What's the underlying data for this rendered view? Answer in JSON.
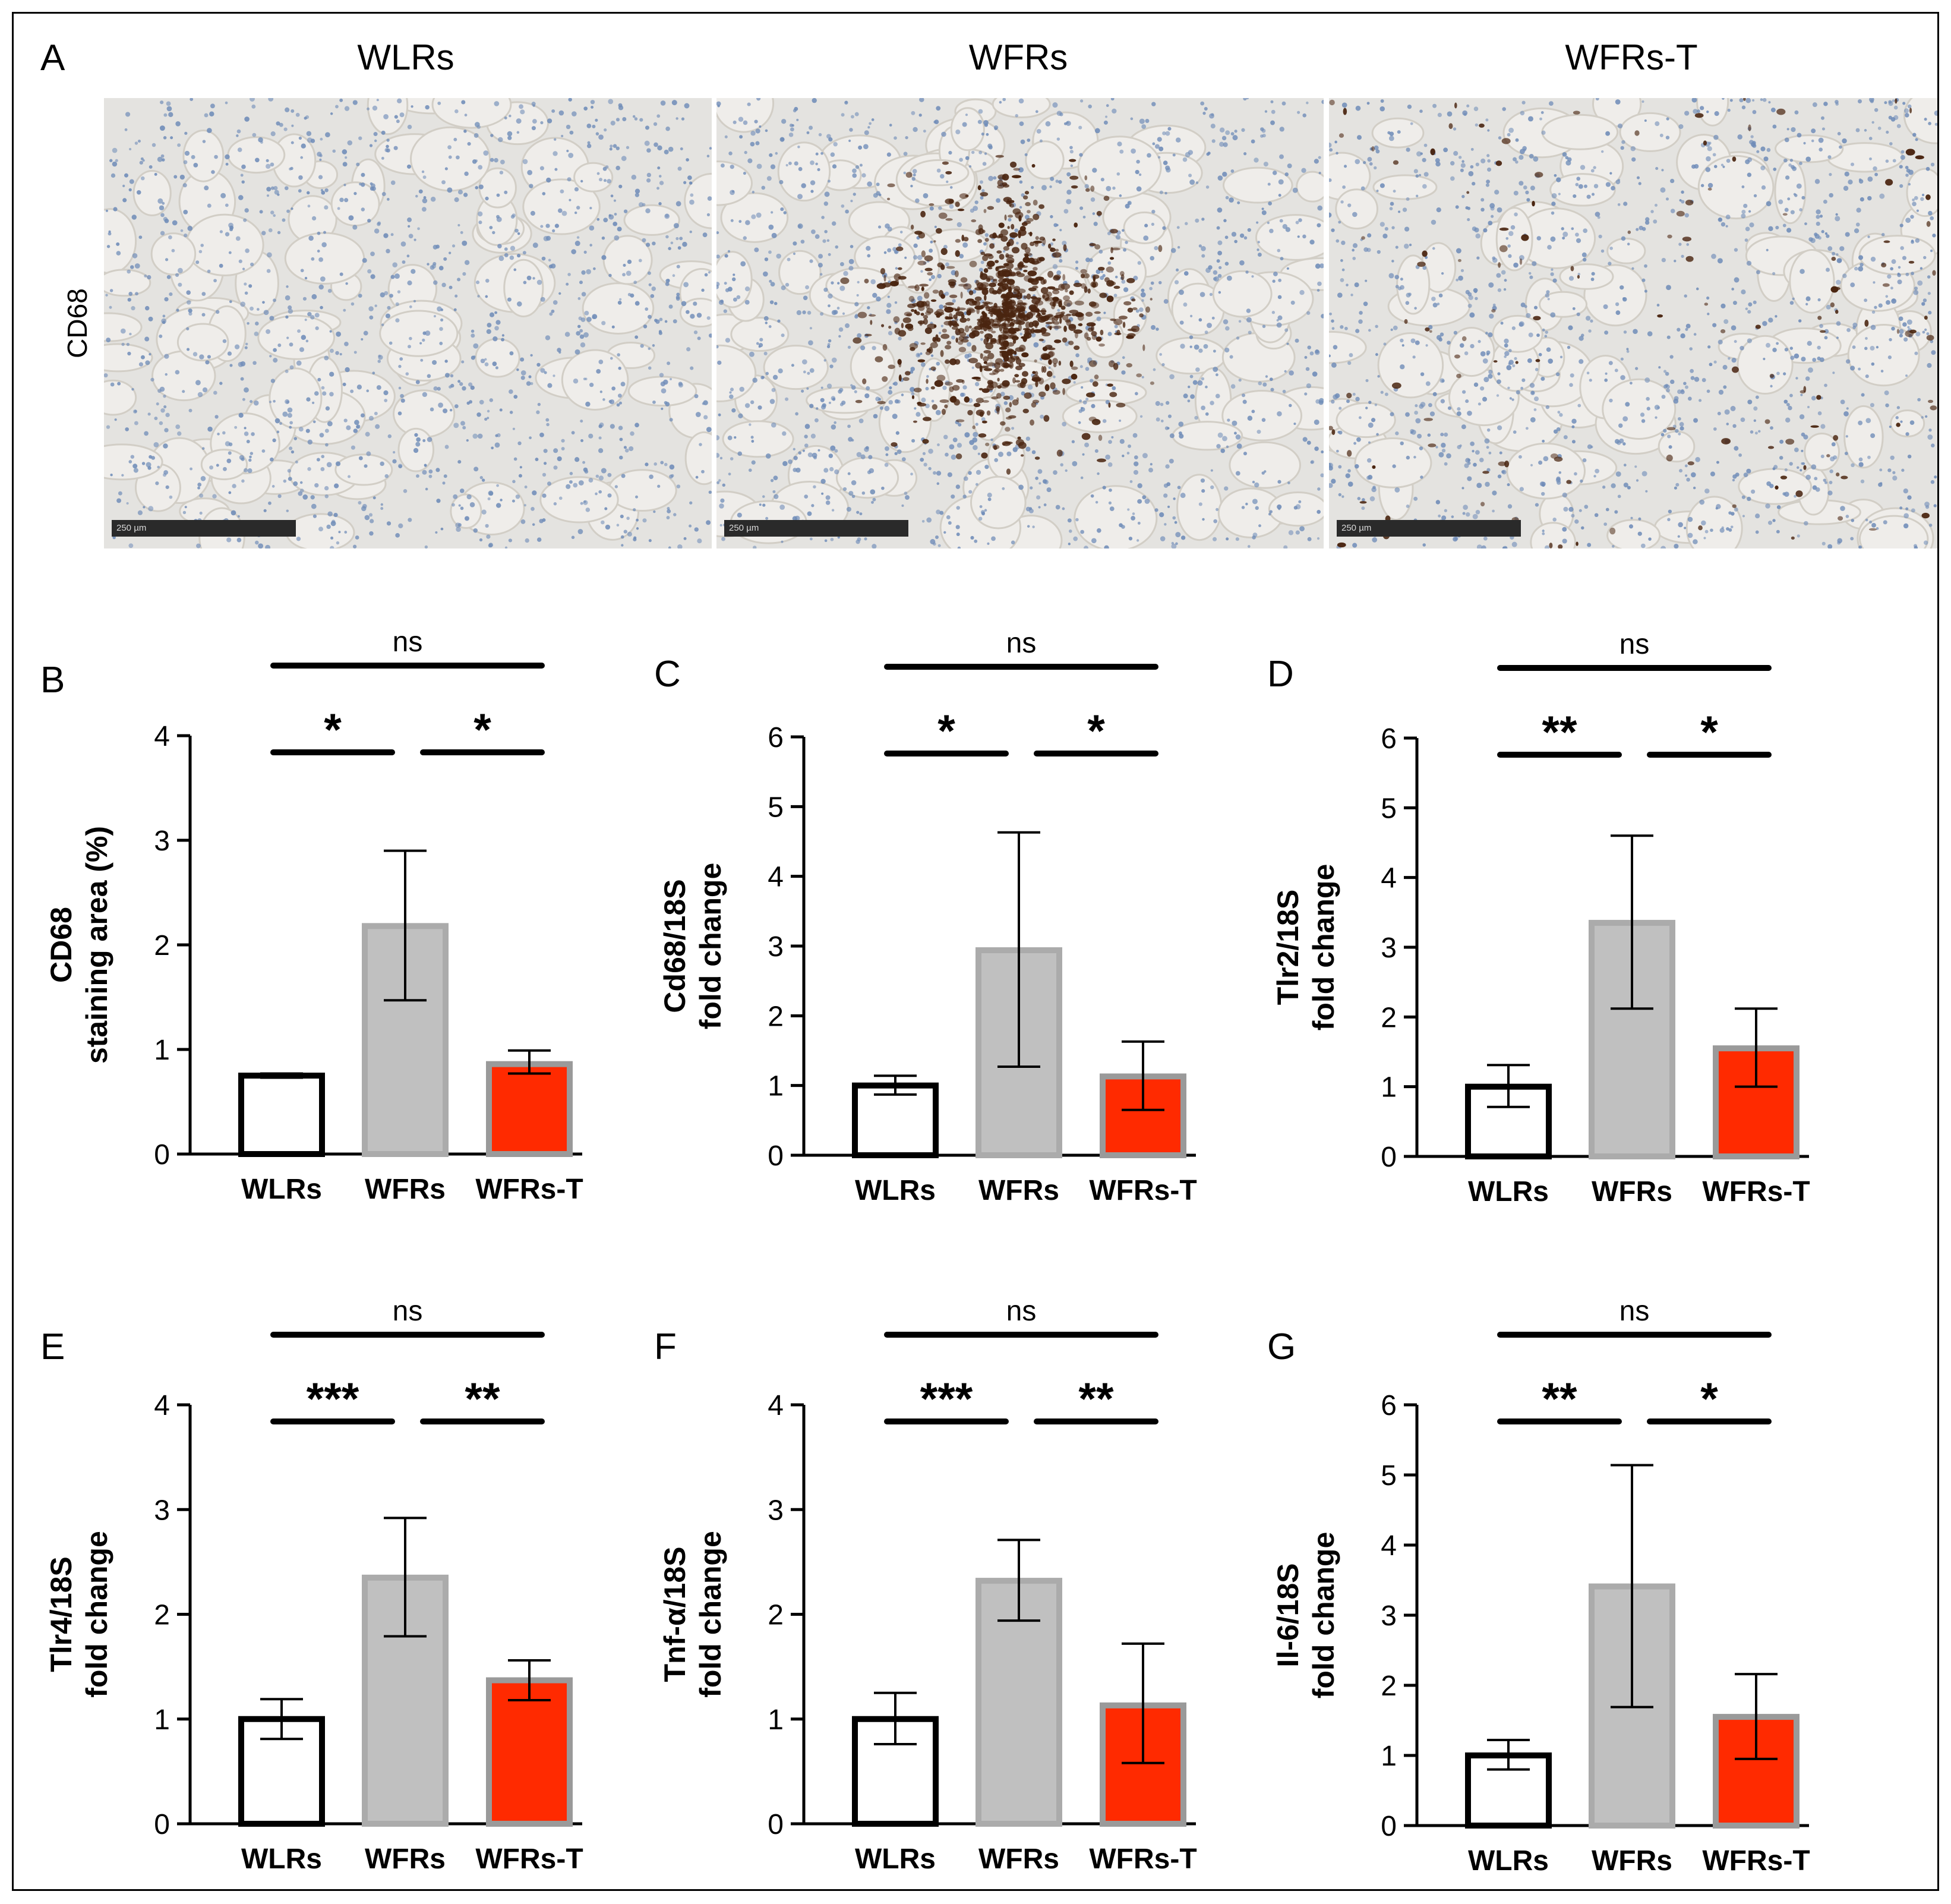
{
  "panel_a": {
    "letter": "A",
    "row_label": "CD68",
    "images": [
      {
        "title": "WLRs",
        "scale_label": "250 µm"
      },
      {
        "title": "WFRs",
        "scale_label": "250 µm"
      },
      {
        "title": "WFRs-T",
        "scale_label": "250 µm"
      }
    ]
  },
  "colors": {
    "wlrs_fill": "#ffffff",
    "wlrs_edge": "#000000",
    "wfrs_fill": "#c0c0c0",
    "wfrs_edge": "#ababab",
    "wfrst_fill": "#ff2a00",
    "wfrst_edge": "#9a9a9a",
    "tissue_bg": "#e4e3e0",
    "nuclei": "#6f8cb8",
    "stain": "#4a2510"
  },
  "chart_data": [
    {
      "panel": "B",
      "type": "bar",
      "categories": [
        "WLRs",
        "WFRs",
        "WFRs-T"
      ],
      "ylabel_lines": [
        "CD68",
        "staining area (%)"
      ],
      "ylim": [
        0,
        4
      ],
      "yticks": [
        "0",
        "1",
        "2",
        "3",
        "4"
      ],
      "values": [
        0.75,
        2.18,
        0.86
      ],
      "err_low": [
        0.73,
        1.47,
        0.77
      ],
      "err_high": [
        0.77,
        2.9,
        0.99
      ],
      "sig": [
        "*",
        "*",
        "ns"
      ]
    },
    {
      "panel": "C",
      "type": "bar",
      "categories": [
        "WLRs",
        "WFRs",
        "WFRs-T"
      ],
      "ylabel_lines": [
        "Cd68/18S",
        "fold change"
      ],
      "ylim": [
        0,
        6
      ],
      "yticks": [
        "0",
        "1",
        "2",
        "3",
        "4",
        "5",
        "6"
      ],
      "values": [
        1.0,
        2.94,
        1.13
      ],
      "err_low": [
        0.87,
        1.27,
        0.65
      ],
      "err_high": [
        1.14,
        4.63,
        1.63
      ],
      "sig": [
        "*",
        "*",
        "ns"
      ]
    },
    {
      "panel": "D",
      "type": "bar",
      "categories": [
        "WLRs",
        "WFRs",
        "WFRs-T"
      ],
      "ylabel_lines": [
        "Tlr2/18S",
        "fold change"
      ],
      "ylim": [
        0,
        6
      ],
      "yticks": [
        "0",
        "1",
        "2",
        "3",
        "4",
        "5",
        "6"
      ],
      "values": [
        1.0,
        3.35,
        1.55
      ],
      "err_low": [
        0.71,
        2.12,
        1.0
      ],
      "err_high": [
        1.31,
        4.6,
        2.12
      ],
      "sig": [
        "**",
        "*",
        "ns"
      ]
    },
    {
      "panel": "E",
      "type": "bar",
      "categories": [
        "WLRs",
        "WFRs",
        "WFRs-T"
      ],
      "ylabel_lines": [
        "Tlr4/18S",
        "fold change"
      ],
      "ylim": [
        0,
        4
      ],
      "yticks": [
        "0",
        "1",
        "2",
        "3",
        "4"
      ],
      "values": [
        1.0,
        2.35,
        1.37
      ],
      "err_low": [
        0.81,
        1.79,
        1.18
      ],
      "err_high": [
        1.19,
        2.92,
        1.56
      ],
      "sig": [
        "***",
        "**",
        "ns"
      ]
    },
    {
      "panel": "F",
      "type": "bar",
      "categories": [
        "WLRs",
        "WFRs",
        "WFRs-T"
      ],
      "ylabel_lines": [
        "Tnf-α/18S",
        "fold change"
      ],
      "ylim": [
        0,
        4
      ],
      "yticks": [
        "0",
        "1",
        "2",
        "3",
        "4"
      ],
      "values": [
        1.0,
        2.32,
        1.13
      ],
      "err_low": [
        0.76,
        1.94,
        0.58
      ],
      "err_high": [
        1.25,
        2.71,
        1.72
      ],
      "sig": [
        "***",
        "**",
        "ns"
      ]
    },
    {
      "panel": "G",
      "type": "bar",
      "categories": [
        "WLRs",
        "WFRs",
        "WFRs-T"
      ],
      "ylabel_lines": [
        "Il-6/18S",
        "fold change"
      ],
      "ylim": [
        0,
        6
      ],
      "yticks": [
        "0",
        "1",
        "2",
        "3",
        "4",
        "5",
        "6"
      ],
      "values": [
        1.0,
        3.41,
        1.55
      ],
      "err_low": [
        0.8,
        1.69,
        0.95
      ],
      "err_high": [
        1.22,
        5.14,
        2.16
      ],
      "sig": [
        "**",
        "*",
        "ns"
      ]
    }
  ]
}
